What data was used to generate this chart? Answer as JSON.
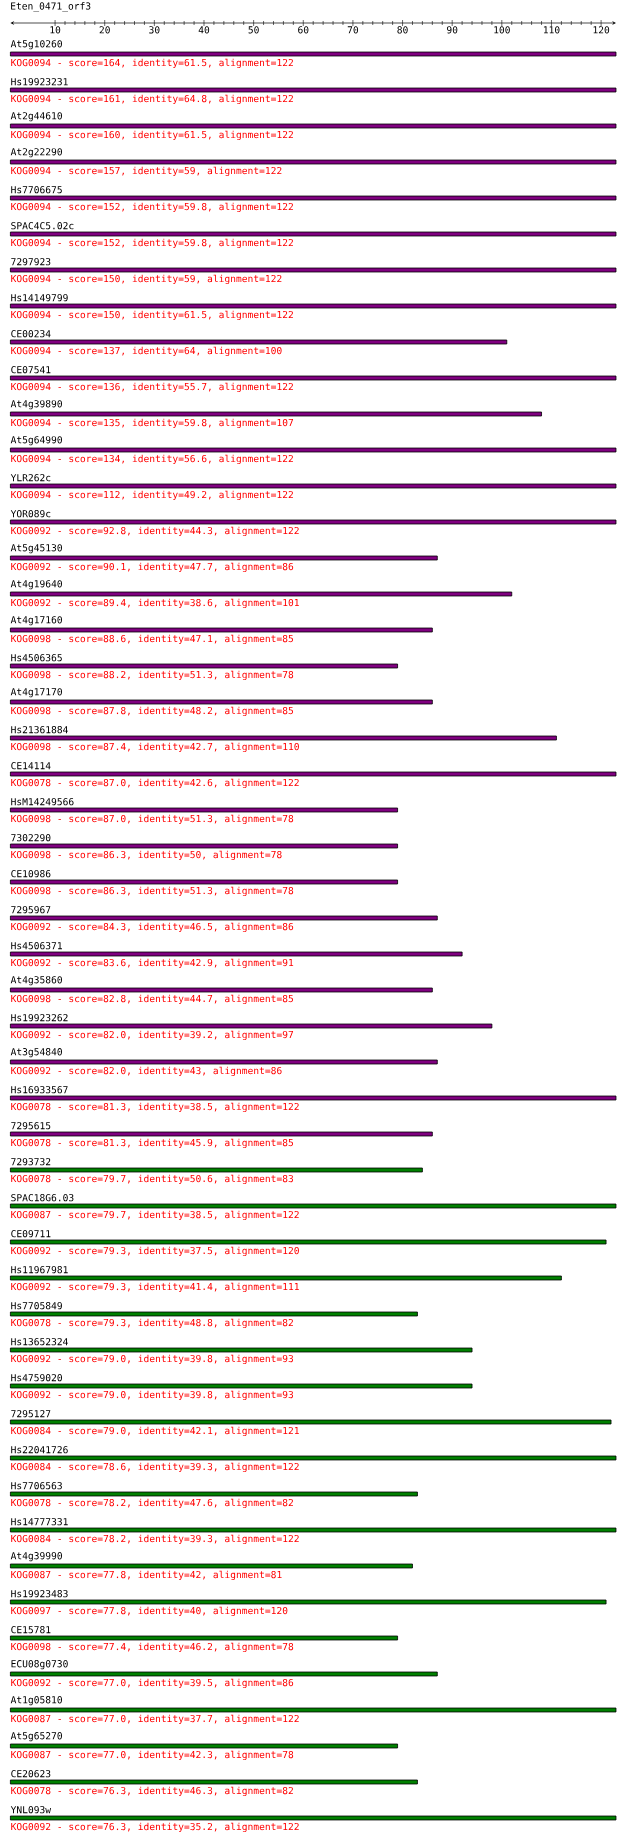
{
  "chart_data": {
    "type": "bar",
    "orientation": "horizontal",
    "title": "Eten_0471_orf3",
    "categories": [
      "At5g10260",
      "Hs19923231",
      "At2g44610",
      "At2g22290",
      "Hs7706675",
      "SPAC4C5.02c",
      "7297923",
      "Hs14149799",
      "CE00234",
      "CE07541",
      "At4g39890",
      "At5g64990",
      "YLR262c",
      "YOR089c",
      "At5g45130",
      "At4g19640",
      "At4g17160",
      "Hs4506365",
      "At4g17170",
      "Hs21361884",
      "CE14114",
      "HsM14249566",
      "7302290",
      "CE10986",
      "7295967",
      "Hs4506371",
      "At4g35860",
      "Hs19923262",
      "At3g54840",
      "Hs16933567",
      "7295615",
      "7293732",
      "SPAC18G6.03",
      "CE09711",
      "Hs11967981",
      "Hs7705849",
      "Hs13652324",
      "Hs4759020",
      "7295127",
      "Hs22041726",
      "Hs7706563",
      "Hs14777331",
      "At4g39990",
      "Hs19923483",
      "CE15781",
      "ECU08g0730",
      "At1g05810",
      "At5g65270",
      "CE20623",
      "YNL093w"
    ],
    "values": [
      122,
      122,
      122,
      122,
      122,
      122,
      122,
      122,
      100,
      122,
      107,
      122,
      122,
      122,
      86,
      101,
      85,
      78,
      85,
      110,
      122,
      78,
      78,
      78,
      86,
      91,
      85,
      97,
      86,
      122,
      85,
      83,
      122,
      120,
      111,
      82,
      93,
      93,
      121,
      122,
      82,
      122,
      81,
      120,
      78,
      86,
      122,
      78,
      82,
      122
    ],
    "base": [
      1,
      1,
      1,
      1,
      1,
      1,
      1,
      1,
      1,
      1,
      1,
      1,
      1,
      1,
      1,
      1,
      1,
      1,
      1,
      1,
      1,
      1,
      1,
      1,
      1,
      1,
      1,
      1,
      1,
      1,
      1,
      1,
      1,
      1,
      1,
      1,
      1,
      1,
      1,
      1,
      1,
      1,
      1,
      1,
      1,
      1,
      1,
      1,
      1,
      1
    ],
    "colors": [
      "#800080",
      "#800080",
      "#800080",
      "#800080",
      "#800080",
      "#800080",
      "#800080",
      "#800080",
      "#800080",
      "#800080",
      "#800080",
      "#800080",
      "#800080",
      "#800080",
      "#800080",
      "#800080",
      "#800080",
      "#800080",
      "#800080",
      "#800080",
      "#800080",
      "#800080",
      "#800080",
      "#800080",
      "#800080",
      "#800080",
      "#800080",
      "#800080",
      "#800080",
      "#800080",
      "#800080",
      "#008000",
      "#008000",
      "#008000",
      "#008000",
      "#008000",
      "#008000",
      "#008000",
      "#008000",
      "#008000",
      "#008000",
      "#008000",
      "#008000",
      "#008000",
      "#008000",
      "#008000",
      "#008000",
      "#008000",
      "#008000",
      "#008000"
    ],
    "xlim": [
      1,
      123
    ],
    "xticks": [
      10,
      20,
      30,
      40,
      50,
      60,
      70,
      80,
      90,
      100,
      110,
      120
    ],
    "annotations": [
      "KOG0094 - score=164, identity=61.5, alignment=122",
      "KOG0094 - score=161, identity=64.8, alignment=122",
      "KOG0094 - score=160, identity=61.5, alignment=122",
      "KOG0094 - score=157, identity=59, alignment=122",
      "KOG0094 - score=152, identity=59.8, alignment=122",
      "KOG0094 - score=152, identity=59.8, alignment=122",
      "KOG0094 - score=150, identity=59, alignment=122",
      "KOG0094 - score=150, identity=61.5, alignment=122",
      "KOG0094 - score=137, identity=64, alignment=100",
      "KOG0094 - score=136, identity=55.7, alignment=122",
      "KOG0094 - score=135, identity=59.8, alignment=107",
      "KOG0094 - score=134, identity=56.6, alignment=122",
      "KOG0094 - score=112, identity=49.2, alignment=122",
      "KOG0092 - score=92.8, identity=44.3, alignment=122",
      "KOG0092 - score=90.1, identity=47.7, alignment=86",
      "KOG0092 - score=89.4, identity=38.6, alignment=101",
      "KOG0098 - score=88.6, identity=47.1, alignment=85",
      "KOG0098 - score=88.2, identity=51.3, alignment=78",
      "KOG0098 - score=87.8, identity=48.2, alignment=85",
      "KOG0098 - score=87.4, identity=42.7, alignment=110",
      "KOG0078 - score=87.0, identity=42.6, alignment=122",
      "KOG0098 - score=87.0, identity=51.3, alignment=78",
      "KOG0098 - score=86.3, identity=50, alignment=78",
      "KOG0098 - score=86.3, identity=51.3, alignment=78",
      "KOG0092 - score=84.3, identity=46.5, alignment=86",
      "KOG0092 - score=83.6, identity=42.9, alignment=91",
      "KOG0098 - score=82.8, identity=44.7, alignment=85",
      "KOG0092 - score=82.0, identity=39.2, alignment=97",
      "KOG0092 - score=82.0, identity=43, alignment=86",
      "KOG0078 - score=81.3, identity=38.5, alignment=122",
      "KOG0078 - score=81.3, identity=45.9, alignment=85",
      "KOG0078 - score=79.7, identity=50.6, alignment=83",
      "KOG0087 - score=79.7, identity=38.5, alignment=122",
      "KOG0092 - score=79.3, identity=37.5, alignment=120",
      "KOG0092 - score=79.3, identity=41.4, alignment=111",
      "KOG0078 - score=79.3, identity=48.8, alignment=82",
      "KOG0092 - score=79.0, identity=39.8, alignment=93",
      "KOG0092 - score=79.0, identity=39.8, alignment=93",
      "KOG0084 - score=79.0, identity=42.1, alignment=121",
      "KOG0084 - score=78.6, identity=39.3, alignment=122",
      "KOG0078 - score=78.2, identity=47.6, alignment=82",
      "KOG0084 - score=78.2, identity=39.3, alignment=122",
      "KOG0087 - score=77.8, identity=42, alignment=81",
      "KOG0097 - score=77.8, identity=40, alignment=120",
      "KOG0098 - score=77.4, identity=46.2, alignment=78",
      "KOG0092 - score=77.0, identity=39.5, alignment=86",
      "KOG0087 - score=77.0, identity=37.7, alignment=122",
      "KOG0087 - score=77.0, identity=42.3, alignment=78",
      "KOG0078 - score=76.3, identity=46.3, alignment=82",
      "KOG0092 - score=76.3, identity=35.2, alignment=122"
    ]
  }
}
